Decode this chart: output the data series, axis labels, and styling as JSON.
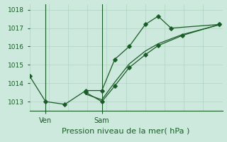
{
  "xlabel": "Pression niveau de la mer( hPa )",
  "background_color": "#cde8dc",
  "grid_color": "#b0d4c0",
  "line_color": "#1a5c28",
  "ylim": [
    1012.5,
    1018.3
  ],
  "xlim": [
    0,
    12
  ],
  "yticks": [
    1013,
    1014,
    1015,
    1016,
    1017,
    1018
  ],
  "xtick_positions": [
    1.0,
    4.5
  ],
  "xtick_labels": [
    "Ven",
    "Sam"
  ],
  "vline_positions": [
    1.0,
    4.5
  ],
  "num_vgrid": 11,
  "series1_x": [
    0.0,
    1.0,
    2.2,
    3.5,
    4.5,
    5.3,
    6.2,
    7.2,
    8.0,
    8.8,
    11.8
  ],
  "series1_y": [
    1014.4,
    1013.0,
    1012.85,
    1013.6,
    1013.6,
    1015.3,
    1016.0,
    1017.2,
    1017.65,
    1017.0,
    1017.2
  ],
  "series2_x": [
    3.5,
    4.5,
    5.3,
    6.2,
    7.2,
    8.0,
    9.5,
    11.8
  ],
  "series2_y": [
    1013.5,
    1013.0,
    1013.85,
    1014.85,
    1015.55,
    1016.05,
    1016.6,
    1017.2
  ],
  "series3_x": [
    3.5,
    4.5,
    5.3,
    6.2,
    7.2,
    8.0,
    9.5,
    11.8
  ],
  "series3_y": [
    1013.4,
    1013.1,
    1014.05,
    1015.05,
    1015.75,
    1016.15,
    1016.65,
    1017.18
  ],
  "xlabel_fontsize": 8,
  "ytick_fontsize": 6.5,
  "xtick_fontsize": 7
}
